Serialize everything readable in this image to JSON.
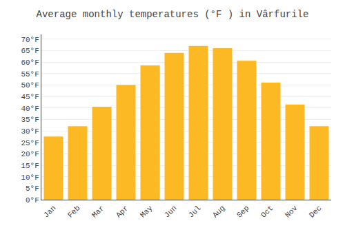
{
  "chart_data": {
    "type": "bar",
    "title": "Average monthly temperatures (°F ) in Vârfurile",
    "categories": [
      "Jan",
      "Feb",
      "Mar",
      "Apr",
      "May",
      "Jun",
      "Jul",
      "Aug",
      "Sep",
      "Oct",
      "Nov",
      "Dec"
    ],
    "values": [
      27.5,
      32.0,
      40.5,
      50.0,
      58.5,
      64.0,
      67.0,
      66.0,
      60.5,
      51.0,
      41.5,
      32.0
    ],
    "color": "#FDB924",
    "ylim": [
      0,
      72
    ],
    "yticks": [
      {
        "value": 0,
        "label": "0°F"
      },
      {
        "value": 5,
        "label": "5°F"
      },
      {
        "value": 10,
        "label": "10°F"
      },
      {
        "value": 15,
        "label": "15°F"
      },
      {
        "value": 20,
        "label": "20°F"
      },
      {
        "value": 25,
        "label": "25°F"
      },
      {
        "value": 30,
        "label": "30°F"
      },
      {
        "value": 35,
        "label": "35°F"
      },
      {
        "value": 40,
        "label": "40°F"
      },
      {
        "value": 45,
        "label": "45°F"
      },
      {
        "value": 50,
        "label": "50°F"
      },
      {
        "value": 55,
        "label": "55°F"
      },
      {
        "value": 60,
        "label": "60°F"
      },
      {
        "value": 65,
        "label": "65°F"
      },
      {
        "value": 70,
        "label": "70°F"
      }
    ],
    "grid": true
  }
}
